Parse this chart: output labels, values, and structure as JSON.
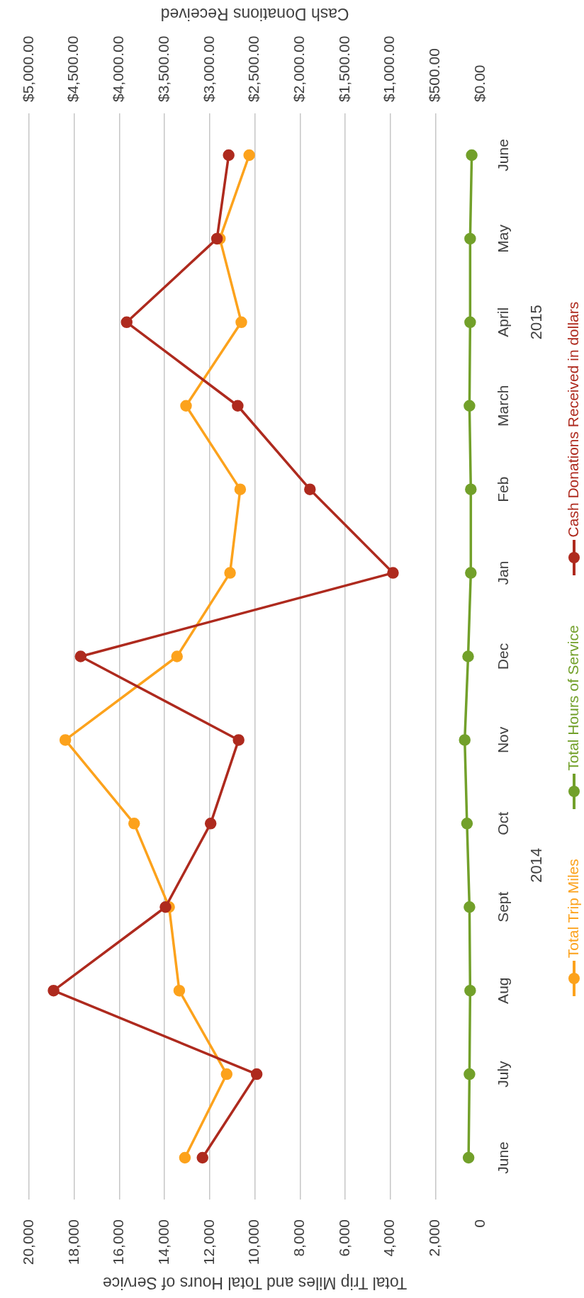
{
  "chart_data": {
    "type": "line",
    "orientation": "horizontal",
    "categories": [
      "June",
      "May",
      "April",
      "March",
      "Feb",
      "Jan",
      "Dec",
      "Nov",
      "Oct",
      "Sept",
      "Aug",
      "July",
      "June"
    ],
    "series": [
      {
        "name": "Total Trip Miles",
        "color": "#fca21c",
        "values": [
          10250,
          11550,
          10600,
          13050,
          10650,
          11100,
          13450,
          18400,
          15350,
          13800,
          13350,
          11250,
          13100
        ]
      },
      {
        "name": "Total Hours of Service",
        "color": "#72a02a",
        "values": [
          390,
          460,
          460,
          490,
          430,
          430,
          550,
          700,
          600,
          490,
          460,
          490,
          530
        ]
      },
      {
        "name": "Cash Donations Received in dollars",
        "color": "#ae2a1e",
        "axis": "x2",
        "values": [
          2790,
          2920,
          3920,
          2690,
          1890,
          970,
          4430,
          2680,
          2990,
          3490,
          4730,
          2480,
          3080
        ]
      }
    ],
    "xlabel": "Total Trip Miles and Total Hours of Service",
    "x2label": "Cash Donations Received",
    "xlim": [
      20000,
      0
    ],
    "xticks": [
      {
        "value": 20000,
        "label": "20,000"
      },
      {
        "value": 18000,
        "label": "18,000"
      },
      {
        "value": 16000,
        "label": "16,000"
      },
      {
        "value": 14000,
        "label": "14,000"
      },
      {
        "value": 12000,
        "label": "12,000"
      },
      {
        "value": 10000,
        "label": "10,000"
      },
      {
        "value": 8000,
        "label": "8,000"
      },
      {
        "value": 6000,
        "label": "6,000"
      },
      {
        "value": 4000,
        "label": "4,000"
      },
      {
        "value": 2000,
        "label": "2,000"
      },
      0
    ],
    "x2lim": [
      5000,
      0
    ],
    "x2ticks": [
      {
        "value": 5000,
        "label": "$5,000.00"
      },
      {
        "value": 4500,
        "label": "$4,500.00"
      },
      {
        "value": 4000,
        "label": "$4,000.00"
      },
      {
        "value": 3500,
        "label": "$3,500.00"
      },
      {
        "value": 3000,
        "label": "$3,000.00"
      },
      {
        "value": 2500,
        "label": "$2,500.00"
      },
      {
        "value": 2000,
        "label": "$2,000.00"
      },
      {
        "value": 1500,
        "label": "$1,500.00"
      },
      {
        "value": 1000,
        "label": "$1,000.00"
      },
      {
        "value": 500,
        "label": "$500.00"
      },
      {
        "value": 0,
        "label": "$0.00"
      }
    ],
    "grid": "x",
    "legend": "right",
    "marker": "circle",
    "line_style": "solid",
    "annotations": [
      "2015",
      "2014"
    ]
  }
}
